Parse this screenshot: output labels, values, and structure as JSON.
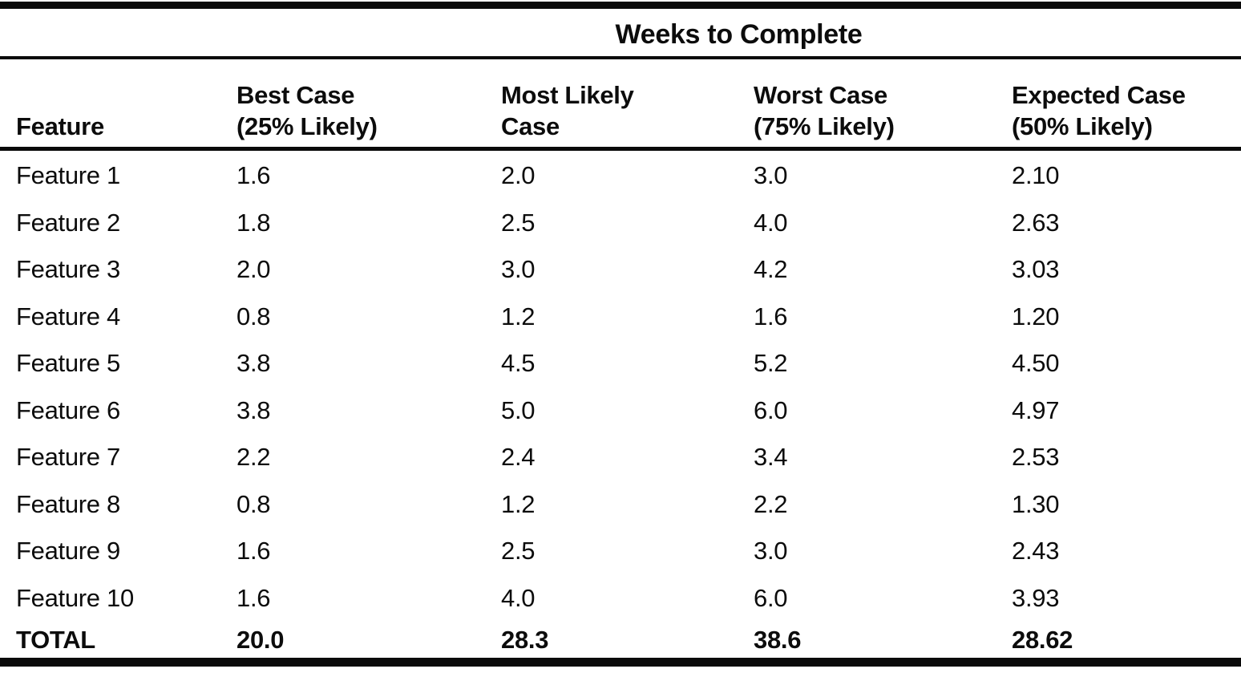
{
  "page": {
    "background_color": "#ffffff",
    "ink_color": "#0c0c0c"
  },
  "table": {
    "span_header": "Weeks to Complete",
    "headers": [
      {
        "line1": "",
        "line2": "Feature"
      },
      {
        "line1": "Best Case",
        "line2": "(25% Likely)"
      },
      {
        "line1": "Most Likely",
        "line2": "Case"
      },
      {
        "line1": "Worst Case",
        "line2": "(75% Likely)"
      },
      {
        "line1": "Expected Case",
        "line2": "(50% Likely)"
      }
    ]
  },
  "chart_data": {
    "type": "table",
    "title": "Weeks to Complete",
    "columns": [
      "Feature",
      "Best Case (25% Likely)",
      "Most Likely Case",
      "Worst Case (75% Likely)",
      "Expected Case (50% Likely)"
    ],
    "rows": [
      [
        "Feature 1",
        "1.6",
        "2.0",
        "3.0",
        "2.10"
      ],
      [
        "Feature 2",
        "1.8",
        "2.5",
        "4.0",
        "2.63"
      ],
      [
        "Feature 3",
        "2.0",
        "3.0",
        "4.2",
        "3.03"
      ],
      [
        "Feature 4",
        "0.8",
        "1.2",
        "1.6",
        "1.20"
      ],
      [
        "Feature 5",
        "3.8",
        "4.5",
        "5.2",
        "4.50"
      ],
      [
        "Feature 6",
        "3.8",
        "5.0",
        "6.0",
        "4.97"
      ],
      [
        "Feature 7",
        "2.2",
        "2.4",
        "3.4",
        "2.53"
      ],
      [
        "Feature 8",
        "0.8",
        "1.2",
        "2.2",
        "1.30"
      ],
      [
        "Feature 9",
        "1.6",
        "2.5",
        "3.0",
        "2.43"
      ],
      [
        "Feature 10",
        "1.6",
        "4.0",
        "6.0",
        "3.93"
      ]
    ],
    "total_row": [
      "TOTAL",
      "20.0",
      "28.3",
      "38.6",
      "28.62"
    ]
  }
}
